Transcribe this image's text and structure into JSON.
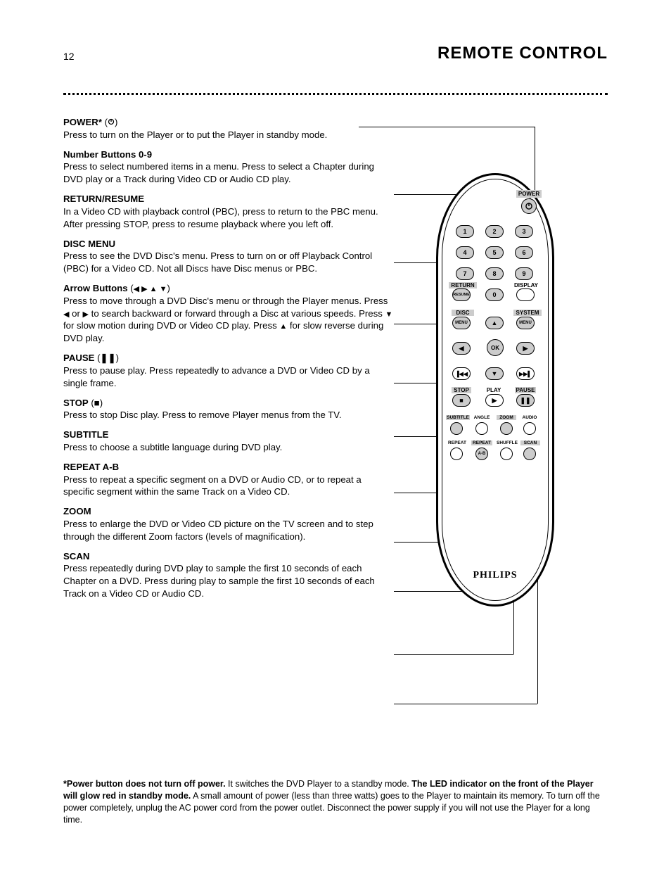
{
  "page": {
    "number": "12",
    "title": "REMOTE CONTROL"
  },
  "callouts": [
    {
      "name": "power",
      "html": "<b>POWER*</b> (<svg width=10 height=10 viewBox='0 0 10 10'><circle cx=5 cy=5 r=3.5 fill='none' stroke='#000' stroke-width='1.3'/><line x1=5 y1=1 x2=5 y2=5 stroke='#000' stroke-width='1.3'/></svg>)<br>Press to turn on the Player or to put the Player in standby mode."
    },
    {
      "name": "number",
      "html": "<b>Number Buttons 0-9</b><br>Press to select numbered items in a menu. Press to select a Chapter during DVD play or a Track during Video CD or Audio CD play."
    },
    {
      "name": "return",
      "html": "<b>RETURN/RESUME</b><br>In a Video CD with playback control (PBC), press to return to the PBC menu. After pressing STOP, press to resume playback where you left off."
    },
    {
      "name": "disc-menu",
      "html": "<b>DISC MENU</b><br>Press to see the DVD Disc's menu. Press to turn on or off Playback Control (PBC) for a Video CD. Not all Discs have Disc menus or PBC."
    },
    {
      "name": "arrows",
      "html": "<b>Arrow Buttons</b> (<span class='tri'>◀ ▶ ▲ ▼</span>)<br>Press to move through a DVD Disc's menu or through the Player menus. Press <span class='tri'>◀</span> or <span class='tri'>▶</span> to search backward or forward through a Disc at various speeds. Press <span class='tri'>▼</span> for slow motion during DVD or Video CD play. Press <span class='tri'>▲</span> for slow reverse during DVD play."
    },
    {
      "name": "pause",
      "html": "<b>PAUSE</b> (<b>❚❚</b>)<br>Press to pause play. Press repeatedly to advance a DVD or Video CD by a single frame."
    },
    {
      "name": "stop",
      "html": "<b>STOP</b> (<b>■</b>)<br>Press to stop Disc play. Press to remove Player menus from the TV."
    },
    {
      "name": "subtitle",
      "html": "<b>SUBTITLE</b><br>Press to choose a subtitle language during DVD play."
    },
    {
      "name": "repeat-ab",
      "html": "<b>REPEAT A-B</b><br>Press to repeat a specific segment on a DVD or Audio CD, or to repeat a specific segment within the same Track on a Video CD."
    },
    {
      "name": "zoom",
      "html": "<b>ZOOM</b><br>Press to enlarge the DVD or Video CD picture on the TV screen and to step through the different Zoom factors (levels of magnification)."
    },
    {
      "name": "scan",
      "html": "<b>SCAN</b><br>Press repeatedly during DVD play to sample the first 10 seconds of each Chapter on a DVD. Press during play to sample the first 10 seconds of each Track on a Video CD or Audio CD."
    }
  ],
  "remote": {
    "labels": {
      "power": "POWER",
      "return": "RETURN",
      "resume": "RESUME",
      "display": "DISPLAY",
      "disc": "DISC",
      "system": "SYSTEM",
      "menu": "MENU",
      "ok": "OK",
      "stop": "STOP",
      "play": "PLAY",
      "pause": "PAUSE",
      "subtitle": "SUBTITLE",
      "angle": "ANGLE",
      "zoom": "ZOOM",
      "audio": "AUDIO",
      "repeat": "REPEAT",
      "repeat_ab": "REPEAT",
      "ab": "A-B",
      "shuffle": "SHUFFLE",
      "scan": "SCAN"
    },
    "numbers": [
      "1",
      "2",
      "3",
      "4",
      "5",
      "6",
      "7",
      "8",
      "9",
      "0"
    ],
    "brand": "PHILIPS"
  },
  "footnote": "<b>*Power button does not turn off power.</b> It switches the DVD Player to a standby mode. <b>The LED indicator on the front of the Player will glow red in standby mode.</b> A small amount of power (less than three watts) goes to the Player to maintain its memory. To turn off the power completely, unplug the AC power cord from the power outlet. Disconnect the power supply if you will not use the Player for a long time."
}
